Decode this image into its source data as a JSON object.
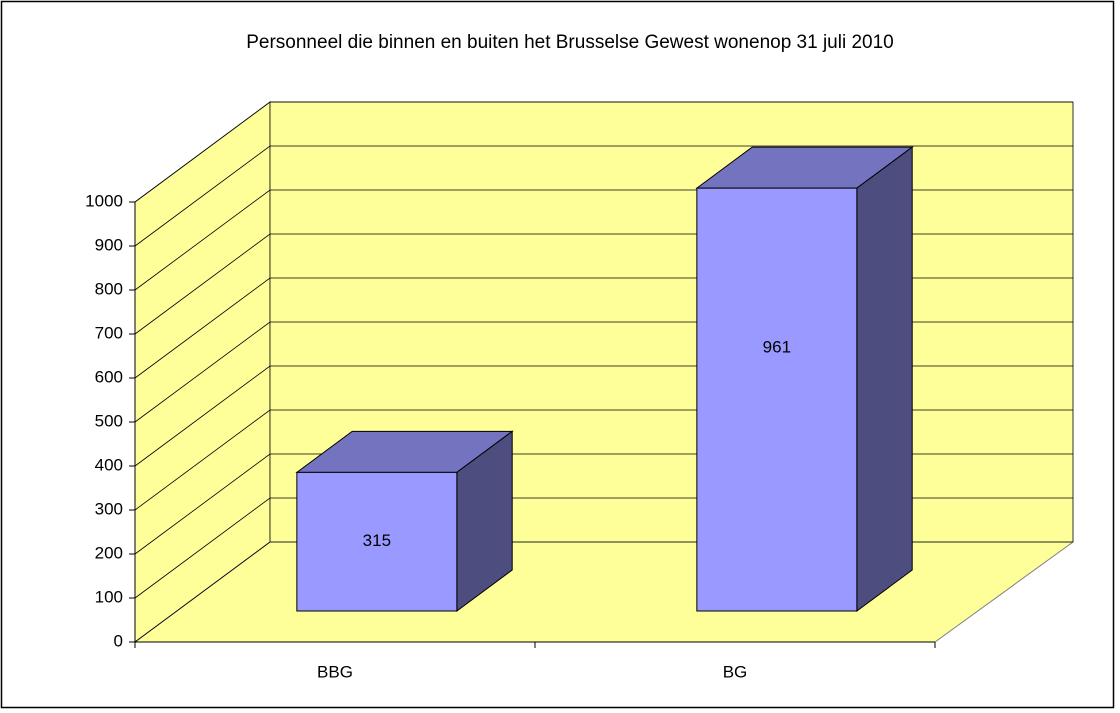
{
  "chart_data": {
    "type": "bar",
    "title": "Personneel die binnen en buiten het Brusselse Gewest  wonenop 31 juli 2010",
    "categories": [
      "BBG",
      "BG"
    ],
    "values": [
      315,
      961
    ],
    "color": "#9999ff",
    "ylim": [
      0,
      1000
    ],
    "yticks": [
      0,
      100,
      200,
      300,
      400,
      500,
      600,
      700,
      800,
      900,
      1000
    ],
    "grid": true
  }
}
